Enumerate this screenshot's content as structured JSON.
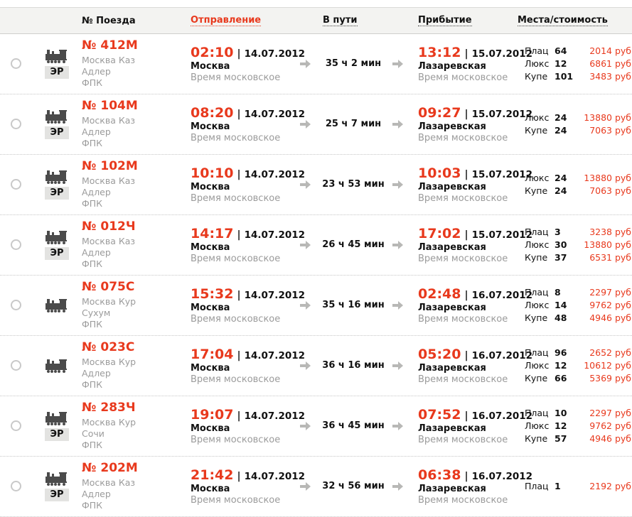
{
  "accent_color": "#e8391d",
  "gray_text_color": "#9b9b9b",
  "header_bg_color": "#f3f3f1",
  "header": {
    "train_number": "№ Поезда",
    "departure": "Отправление",
    "duration": "В пути",
    "arrival": "Прибытие",
    "seats": "Места/стоимость"
  },
  "er_badge_label": "ЭР",
  "icons": {
    "train": "train-icon",
    "arrow": "arrow-right-icon",
    "radio": "train-select-radio"
  },
  "rows": [
    {
      "number": "№ 412М",
      "route": [
        "Москва Каз",
        "Адлер",
        "ФПК"
      ],
      "er": true,
      "dep_time": "02:10",
      "dep_sep": "|",
      "dep_date": "14.07.2012",
      "dep_city": "Москва",
      "dep_tz": "Время московское",
      "duration": "35 ч 2 мин",
      "arr_time": "13:12",
      "arr_sep": "|",
      "arr_date": "15.07.2012",
      "arr_city": "Лазаревская",
      "arr_tz": "Время московское",
      "seats": [
        {
          "class": "Плац",
          "count": "64",
          "price": "2014 руб."
        },
        {
          "class": "Люкс",
          "count": "12",
          "price": "6861 руб."
        },
        {
          "class": "Купе",
          "count": "101",
          "price": "3483 руб."
        }
      ]
    },
    {
      "number": "№ 104М",
      "route": [
        "Москва Каз",
        "Адлер",
        "ФПК"
      ],
      "er": true,
      "dep_time": "08:20",
      "dep_sep": "|",
      "dep_date": "14.07.2012",
      "dep_city": "Москва",
      "dep_tz": "Время московское",
      "duration": "25 ч 7 мин",
      "arr_time": "09:27",
      "arr_sep": "|",
      "arr_date": "15.07.2012",
      "arr_city": "Лазаревская",
      "arr_tz": "Время московское",
      "seats": [
        {
          "class": "Люкс",
          "count": "24",
          "price": "13880 руб."
        },
        {
          "class": "Купе",
          "count": "24",
          "price": "7063 руб."
        }
      ]
    },
    {
      "number": "№ 102М",
      "route": [
        "Москва Каз",
        "Адлер",
        "ФПК"
      ],
      "er": true,
      "dep_time": "10:10",
      "dep_sep": "|",
      "dep_date": "14.07.2012",
      "dep_city": "Москва",
      "dep_tz": "Время московское",
      "duration": "23 ч 53 мин",
      "arr_time": "10:03",
      "arr_sep": "|",
      "arr_date": "15.07.2012",
      "arr_city": "Лазаревская",
      "arr_tz": "Время московское",
      "seats": [
        {
          "class": "Люкс",
          "count": "24",
          "price": "13880 руб."
        },
        {
          "class": "Купе",
          "count": "24",
          "price": "7063 руб."
        }
      ]
    },
    {
      "number": "№ 012Ч",
      "route": [
        "Москва Каз",
        "Адлер",
        "ФПК"
      ],
      "er": true,
      "dep_time": "14:17",
      "dep_sep": "|",
      "dep_date": "14.07.2012",
      "dep_city": "Москва",
      "dep_tz": "Время московское",
      "duration": "26 ч 45 мин",
      "arr_time": "17:02",
      "arr_sep": "|",
      "arr_date": "15.07.2012",
      "arr_city": "Лазаревская",
      "arr_tz": "Время московское",
      "seats": [
        {
          "class": "Плац",
          "count": "3",
          "price": "3238 руб."
        },
        {
          "class": "Люкс",
          "count": "30",
          "price": "13880 руб."
        },
        {
          "class": "Купе",
          "count": "37",
          "price": "6531 руб."
        }
      ]
    },
    {
      "number": "№ 075С",
      "route": [
        "Москва Кур",
        "Сухум",
        "ФПК"
      ],
      "er": false,
      "dep_time": "15:32",
      "dep_sep": "|",
      "dep_date": "14.07.2012",
      "dep_city": "Москва",
      "dep_tz": "Время московское",
      "duration": "35 ч 16 мин",
      "arr_time": "02:48",
      "arr_sep": "|",
      "arr_date": "16.07.2012",
      "arr_city": "Лазаревская",
      "arr_tz": "Время московское",
      "seats": [
        {
          "class": "Плац",
          "count": "8",
          "price": "2297 руб."
        },
        {
          "class": "Люкс",
          "count": "14",
          "price": "9762 руб."
        },
        {
          "class": "Купе",
          "count": "48",
          "price": "4946 руб."
        }
      ]
    },
    {
      "number": "№ 023С",
      "route": [
        "Москва Кур",
        "Адлер",
        "ФПК"
      ],
      "er": false,
      "dep_time": "17:04",
      "dep_sep": "|",
      "dep_date": "14.07.2012",
      "dep_city": "Москва",
      "dep_tz": "Время московское",
      "duration": "36 ч 16 мин",
      "arr_time": "05:20",
      "arr_sep": "|",
      "arr_date": "16.07.2012",
      "arr_city": "Лазаревская",
      "arr_tz": "Время московское",
      "seats": [
        {
          "class": "Плац",
          "count": "96",
          "price": "2652 руб."
        },
        {
          "class": "Люкс",
          "count": "12",
          "price": "10612 руб."
        },
        {
          "class": "Купе",
          "count": "66",
          "price": "5369 руб."
        }
      ]
    },
    {
      "number": "№ 283Ч",
      "route": [
        "Москва Кур",
        "Сочи",
        "ФПК"
      ],
      "er": true,
      "dep_time": "19:07",
      "dep_sep": "|",
      "dep_date": "14.07.2012",
      "dep_city": "Москва",
      "dep_tz": "Время московское",
      "duration": "36 ч 45 мин",
      "arr_time": "07:52",
      "arr_sep": "|",
      "arr_date": "16.07.2012",
      "arr_city": "Лазаревская",
      "arr_tz": "Время московское",
      "seats": [
        {
          "class": "Плац",
          "count": "10",
          "price": "2297 руб."
        },
        {
          "class": "Люкс",
          "count": "12",
          "price": "9762 руб."
        },
        {
          "class": "Купе",
          "count": "57",
          "price": "4946 руб."
        }
      ]
    },
    {
      "number": "№ 202М",
      "route": [
        "Москва Каз",
        "Адлер",
        "ФПК"
      ],
      "er": true,
      "dep_time": "21:42",
      "dep_sep": "|",
      "dep_date": "14.07.2012",
      "dep_city": "Москва",
      "dep_tz": "Время московское",
      "duration": "32 ч 56 мин",
      "arr_time": "06:38",
      "arr_sep": "|",
      "arr_date": "16.07.2012",
      "arr_city": "Лазаревская",
      "arr_tz": "Время московское",
      "seats": [
        {
          "class": "Плац",
          "count": "1",
          "price": "2192 руб."
        }
      ]
    }
  ]
}
